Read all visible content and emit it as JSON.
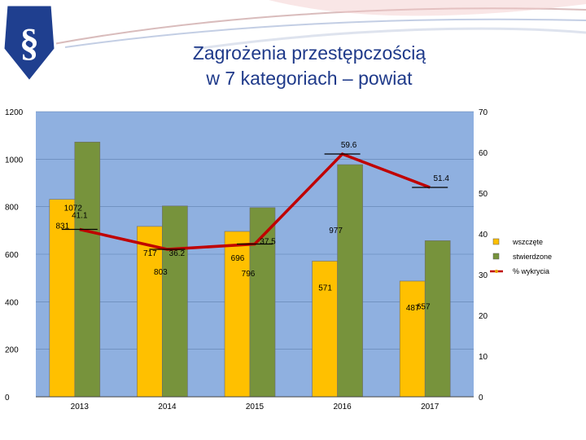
{
  "slide": {
    "title_line1": "Zagrożenia przestępczością",
    "title_line2": "w 7 kategoriach – powiat",
    "logo_symbol": "§",
    "logo_icon": "paragraph-shield-icon"
  },
  "colors": {
    "plot_background": "#8fb0e0",
    "wszczete": "#ffc000",
    "stwierdzone": "#77933c",
    "wykrycia": "#c00000",
    "title": "#1f3a8a",
    "logo": "#1f3f8f"
  },
  "chart_data": {
    "type": "bar",
    "categories": [
      "2013",
      "2014",
      "2015",
      "2016",
      "2017"
    ],
    "series": [
      {
        "name": "wszczęte",
        "type": "bar",
        "axis": "left",
        "values": [
          831,
          717,
          696,
          571,
          487
        ],
        "labels": [
          "831",
          "717",
          "696",
          "571",
          "487"
        ]
      },
      {
        "name": "stwierdzone",
        "type": "bar",
        "axis": "left",
        "values": [
          1072,
          803,
          796,
          977,
          657
        ],
        "labels": [
          "1072",
          "803",
          "796",
          "977",
          "657"
        ]
      },
      {
        "name": "% wykrycia",
        "type": "line",
        "axis": "right",
        "values": [
          41.1,
          36.2,
          37.5,
          59.6,
          51.4
        ],
        "labels": [
          "41.1",
          "36.2",
          "37.5",
          "59.6",
          "51.4"
        ]
      }
    ],
    "y_left": {
      "min": 0,
      "max": 1200,
      "ticks": [
        "0",
        "200",
        "400",
        "600",
        "800",
        "1000",
        "1200"
      ]
    },
    "y_right": {
      "min": 0,
      "max": 70,
      "ticks": [
        "0",
        "10",
        "20",
        "30",
        "40",
        "50",
        "60",
        "70"
      ]
    },
    "grid": true,
    "legend_position": "right"
  }
}
